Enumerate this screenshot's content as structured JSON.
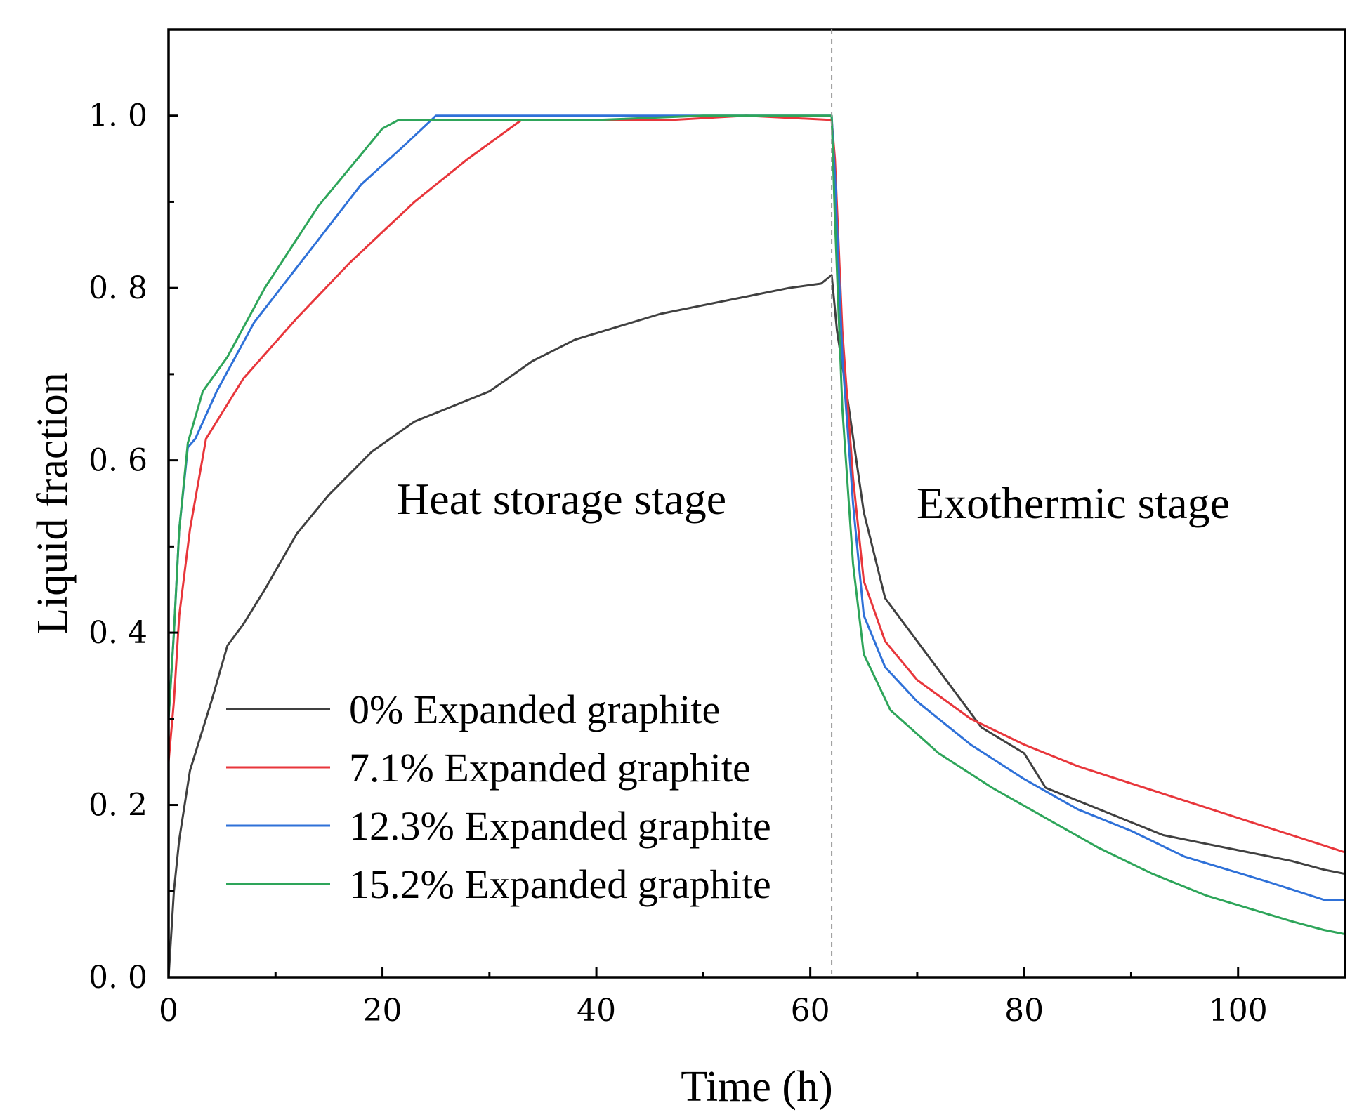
{
  "chart_data": {
    "type": "line",
    "title": "",
    "xlabel": "Time (h)",
    "ylabel": "Liquid fraction",
    "xlim": [
      0,
      110
    ],
    "ylim": [
      0,
      1.1
    ],
    "xticks": [
      0,
      20,
      40,
      60,
      80,
      100
    ],
    "xtick_labels": [
      "0",
      "20",
      "40",
      "60",
      "80",
      "100"
    ],
    "yticks": [
      0,
      0.2,
      0.4,
      0.6,
      0.8,
      1.0
    ],
    "ytick_labels": [
      "0. 0",
      "0. 2",
      "0. 4",
      "0. 6",
      "0. 8",
      "1. 0"
    ],
    "grid": false,
    "legend_position": "bottom-left",
    "stage_divider_x": 62,
    "annotations": {
      "heat_storage": "Heat storage stage",
      "exothermic": "Exothermic stage"
    },
    "series": [
      {
        "name": "0% Expanded graphite",
        "color": "#404040",
        "x": [
          0,
          0.5,
          1,
          2,
          3,
          4,
          5.5,
          7,
          9,
          12,
          15,
          19,
          23,
          27,
          30,
          34,
          38,
          42,
          46,
          50,
          54,
          58,
          61,
          62,
          62.5,
          63.5,
          65,
          67,
          70,
          73,
          76,
          80,
          82,
          86,
          90,
          93,
          97,
          101,
          105,
          108,
          110
        ],
        "y": [
          0,
          0.1,
          0.16,
          0.24,
          0.28,
          0.32,
          0.385,
          0.41,
          0.45,
          0.515,
          0.56,
          0.61,
          0.645,
          0.665,
          0.68,
          0.715,
          0.74,
          0.755,
          0.77,
          0.78,
          0.79,
          0.8,
          0.805,
          0.815,
          0.75,
          0.67,
          0.54,
          0.44,
          0.39,
          0.34,
          0.29,
          0.26,
          0.22,
          0.2,
          0.18,
          0.165,
          0.155,
          0.145,
          0.135,
          0.125,
          0.12
        ]
      },
      {
        "name": "7.1% Expanded graphite",
        "color": "#e8363b",
        "x": [
          0,
          0.5,
          1,
          2,
          3.5,
          7,
          12,
          17,
          23,
          28,
          33,
          40,
          47,
          54,
          62,
          62.3,
          63,
          64,
          65,
          67,
          70,
          75,
          80,
          85,
          90,
          95,
          100,
          105,
          110
        ],
        "y": [
          0.25,
          0.32,
          0.42,
          0.52,
          0.625,
          0.695,
          0.765,
          0.83,
          0.9,
          0.95,
          0.995,
          0.995,
          0.995,
          1.0,
          0.995,
          0.95,
          0.75,
          0.58,
          0.46,
          0.39,
          0.345,
          0.3,
          0.27,
          0.245,
          0.225,
          0.205,
          0.185,
          0.165,
          0.145
        ]
      },
      {
        "name": "12.3% Expanded graphite",
        "color": "#2f71d8",
        "x": [
          0,
          0.5,
          1,
          1.8,
          2.5,
          4.5,
          8,
          13,
          18,
          22,
          25,
          30,
          40,
          50,
          62,
          62.3,
          63,
          64,
          65,
          67,
          70,
          75,
          80,
          85,
          90,
          95,
          99,
          103,
          108,
          110
        ],
        "y": [
          0.3,
          0.4,
          0.52,
          0.615,
          0.625,
          0.68,
          0.76,
          0.84,
          0.92,
          0.965,
          1.0,
          1.0,
          1.0,
          1.0,
          1.0,
          0.93,
          0.72,
          0.55,
          0.42,
          0.36,
          0.32,
          0.27,
          0.23,
          0.195,
          0.17,
          0.14,
          0.125,
          0.11,
          0.09,
          0.09
        ]
      },
      {
        "name": "15.2% Expanded graphite",
        "color": "#2ea55a",
        "x": [
          0,
          0.5,
          1,
          1.8,
          3.2,
          5.5,
          9,
          14,
          18,
          20,
          21.5,
          23,
          30,
          40,
          50,
          62,
          62.3,
          63,
          64,
          65,
          67.5,
          72,
          77,
          82,
          87,
          92,
          97,
          101,
          105,
          108,
          110
        ],
        "y": [
          0.3,
          0.4,
          0.52,
          0.62,
          0.68,
          0.72,
          0.8,
          0.895,
          0.955,
          0.985,
          0.995,
          0.995,
          0.995,
          0.995,
          1.0,
          1.0,
          0.88,
          0.66,
          0.48,
          0.375,
          0.31,
          0.26,
          0.22,
          0.185,
          0.15,
          0.12,
          0.095,
          0.08,
          0.065,
          0.055,
          0.05
        ]
      }
    ]
  }
}
